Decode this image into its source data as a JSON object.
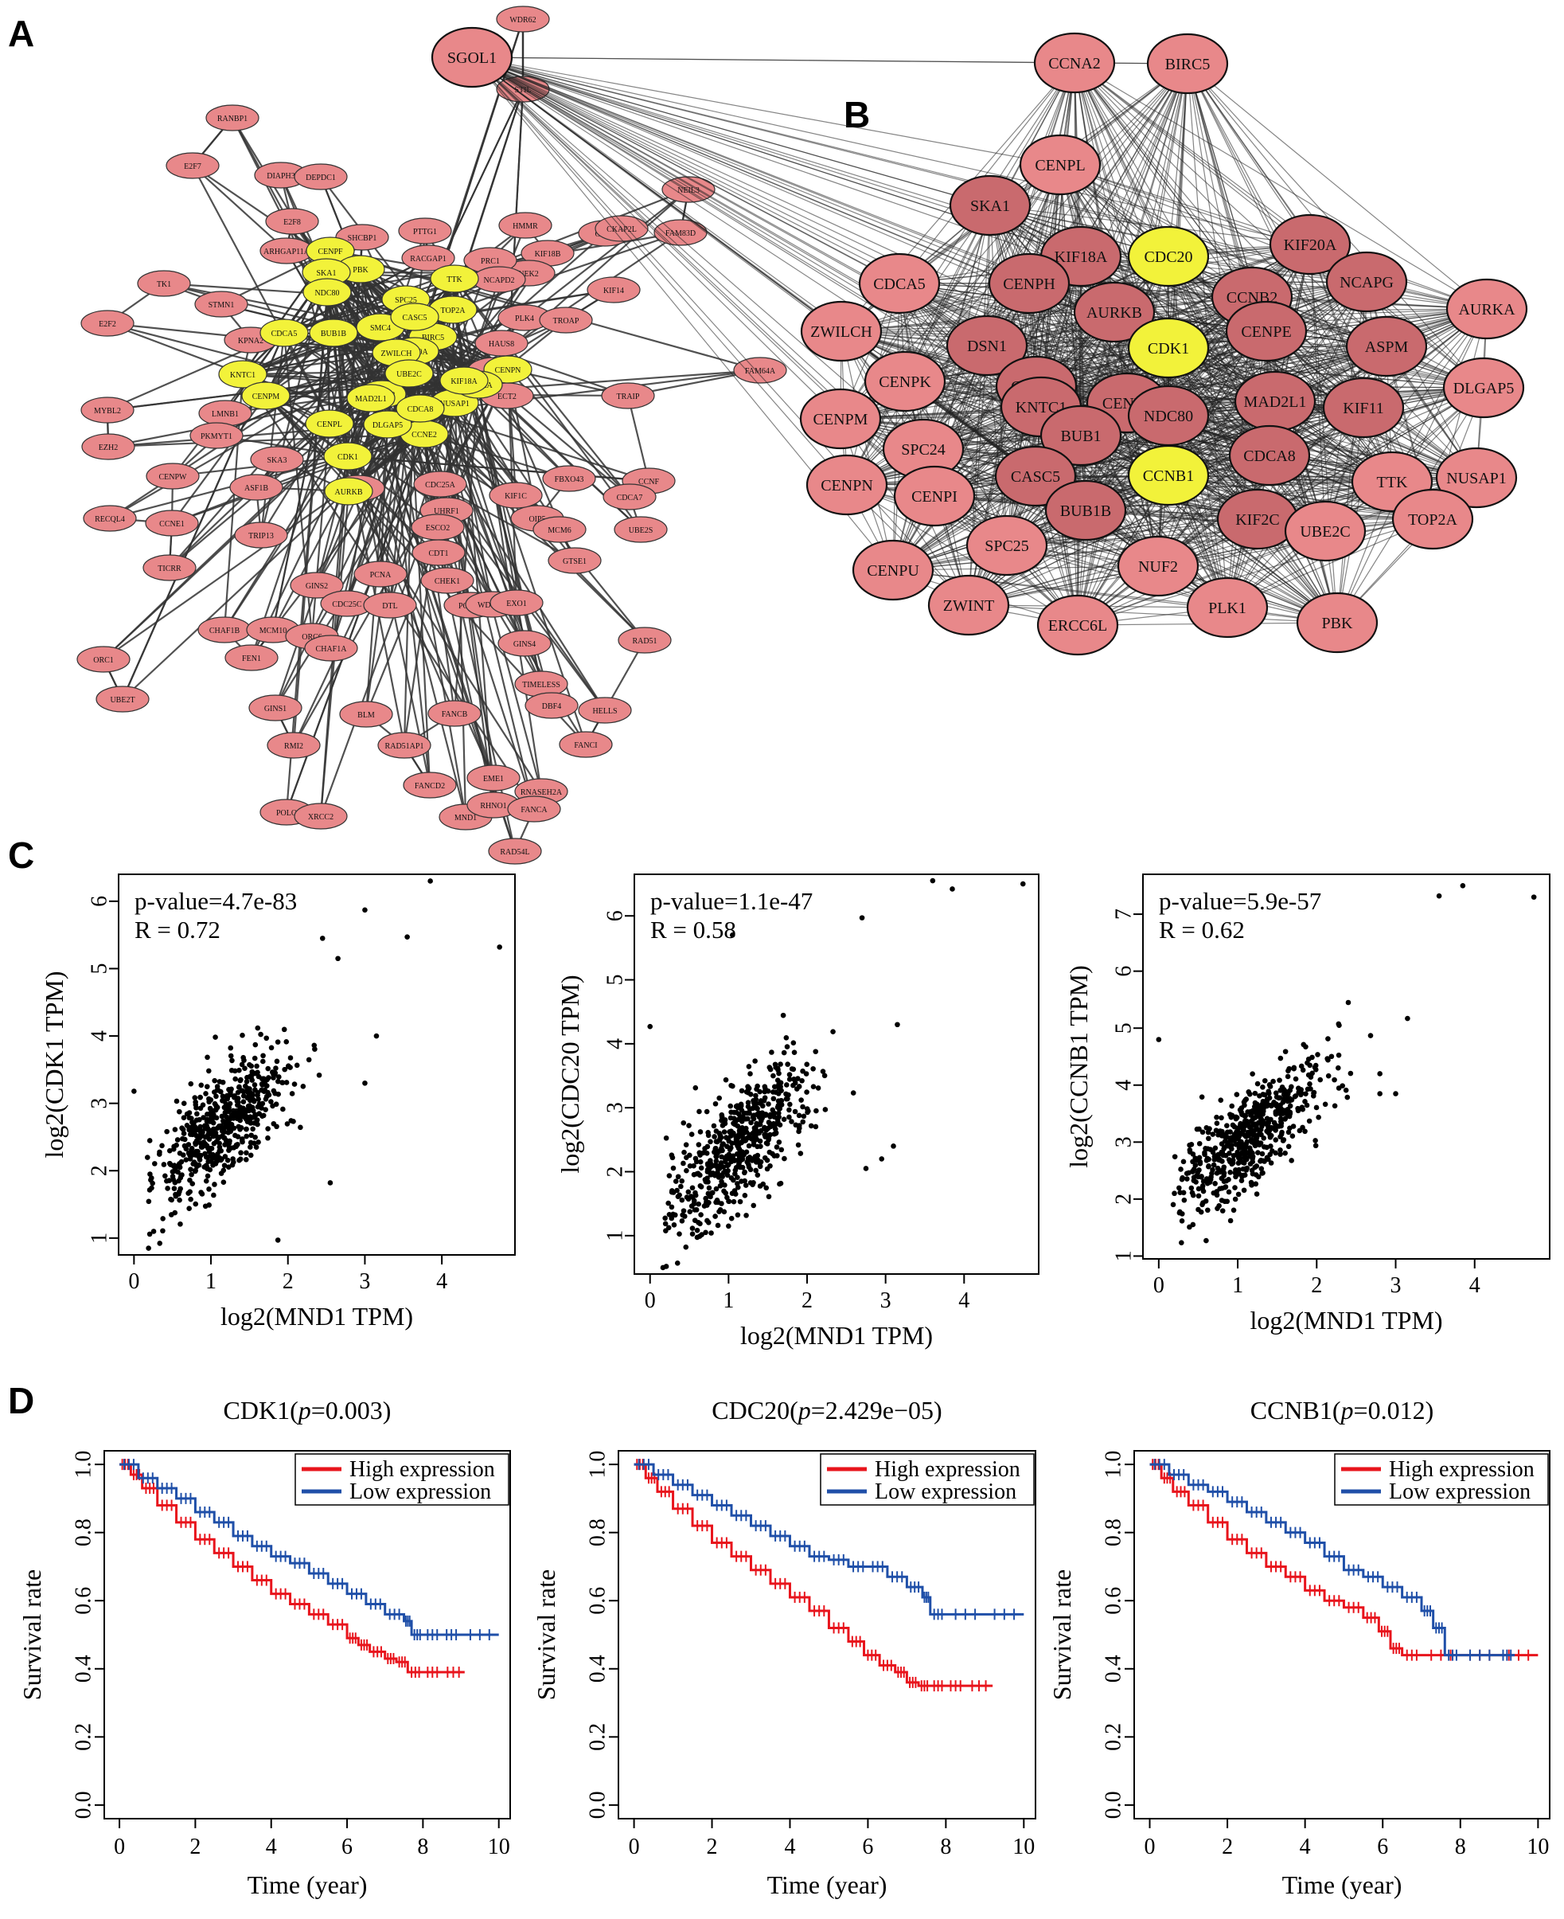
{
  "panels": {
    "A": {
      "letter": "A"
    },
    "B": {
      "letter": "B"
    },
    "C": {
      "letter": "C"
    },
    "D": {
      "letter": "D"
    }
  },
  "colors": {
    "node_pink": "#e8888a",
    "node_yellow": "#f2f23a",
    "node_darkpink": "#c96a6e",
    "edge": "#333333",
    "high_expression": "#e8141c",
    "low_expression": "#1f4fa8"
  },
  "network_b": {
    "nodes": [
      "SGOL1",
      "CCNA2",
      "CENPL",
      "BIRC5",
      "SKA1",
      "KIF18A",
      "CDC20",
      "KIF20A",
      "NCAPG",
      "CDCA5",
      "CENPH",
      "CCNB2",
      "AURKA",
      "AURKB",
      "ZWILCH",
      "DSN1",
      "CDK1",
      "CENPE",
      "ASPM",
      "CENPA",
      "CENPK",
      "DLGAP5",
      "MAD2L1",
      "KIF11",
      "KNTC1",
      "CENPF",
      "CENPM",
      "NDC80",
      "BUB1",
      "SPC24",
      "NUSAP1",
      "CDCA8",
      "CCNB1",
      "CASC5",
      "CENPN",
      "TTK",
      "CENPI",
      "KIF2C",
      "BUB1B",
      "SPC25",
      "UBE2C",
      "TOP2A",
      "NUF2",
      "CENPU",
      "ZWINT",
      "PLK1",
      "PBK",
      "ERCC6L"
    ],
    "highlighted": [
      "CDC20",
      "CDK1",
      "CCNB1"
    ]
  },
  "network_a": {
    "nodes": [
      "WDR62",
      "STIL",
      "RANBP1",
      "E2F7",
      "DIAPH3",
      "DEPDC1",
      "NEIL3",
      "HMMR",
      "PTTG1",
      "GSG2",
      "FAM83D",
      "CKAP2L",
      "E2F8",
      "ARHGAP11A",
      "SHCBP1",
      "KIF18B",
      "NEK2",
      "PRC1",
      "RACGAP1",
      "NCAPD2",
      "TK1",
      "STMN1",
      "KIF14",
      "PLK4",
      "TROAP",
      "E2F2",
      "KPNA2",
      "HAUS8",
      "FAM64A",
      "MYBL2",
      "TPX2",
      "ECT2",
      "TRAIP",
      "EZH2",
      "LMNB1",
      "PKMYT1",
      "SKA3",
      "CENPW",
      "FBXO43",
      "CCNF",
      "ASF1B",
      "E2F1",
      "CDC25A",
      "UHRF1",
      "OIP5",
      "KIF1C",
      "CDCA7",
      "UBE2S",
      "ESCO2",
      "CCNE1",
      "RECQL4",
      "MCM6",
      "GTSE1",
      "TRIP13",
      "CDT1",
      "CHEK1",
      "TICRR",
      "PCNA",
      "GINS2",
      "CDC25C",
      "DTL",
      "POLE2",
      "WDHD1",
      "EXO1",
      "GINS4",
      "CHAF1B",
      "ORC1",
      "MCM10",
      "FEN1",
      "ORC6",
      "CHAF1A",
      "UBE2T",
      "RAD51",
      "TIMELESS",
      "DBF4",
      "GINS1",
      "BLM",
      "FANCB",
      "HELLS",
      "RMI2",
      "RAD51AP1",
      "FANCI",
      "FANCD2",
      "EME1",
      "RNASEH2A",
      "POLQ",
      "XRCC2",
      "MND1",
      "RHNO1",
      "FANCA",
      "RAD54L"
    ],
    "yellow_nodes": [
      "CENPF",
      "PBK",
      "SKA1",
      "SPC25",
      "TOP2A",
      "NDC80",
      "SMC4",
      "BIRC5",
      "KIF20A",
      "CASC5",
      "TTK",
      "CDCA5",
      "BUB1B",
      "ZWILCH",
      "KNTC1",
      "CENPM",
      "CCNA2",
      "CENPL",
      "UBE2C",
      "CENPN",
      "CCNE2",
      "NUSAP1",
      "AURKA",
      "CDK1",
      "AURKB",
      "DLGAP5",
      "MAD2L1",
      "KIF18A",
      "CDCA8"
    ]
  },
  "chart_data": [
    {
      "type": "scatter",
      "panel": "C1",
      "annotations": [
        "p-value=4.7e-83",
        "R = 0.72"
      ],
      "xlabel": "log2(MND1 TPM)",
      "ylabel": "log2(CDK1 TPM)",
      "xlim": [
        -0.2,
        4.95
      ],
      "ylim": [
        0.75,
        6.4
      ],
      "xticks": [
        0,
        1,
        2,
        3,
        4
      ],
      "yticks": [
        1,
        2,
        3,
        4,
        5,
        6
      ],
      "n_points": 570,
      "trend": {
        "x_mean": 1.15,
        "x_sd": 0.45,
        "slope": 0.95,
        "intercept": 1.55,
        "noise": 0.5
      },
      "outliers": [
        [
          0.0,
          3.18
        ],
        [
          1.87,
          0.97
        ],
        [
          2.55,
          1.82
        ],
        [
          2.45,
          5.45
        ],
        [
          2.65,
          5.15
        ],
        [
          3.15,
          4.0
        ],
        [
          3.0,
          3.3
        ],
        [
          3.0,
          5.87
        ],
        [
          3.55,
          5.47
        ],
        [
          3.85,
          6.3
        ],
        [
          4.75,
          5.32
        ]
      ]
    },
    {
      "type": "scatter",
      "panel": "C2",
      "annotations": [
        "p-value=1.1e-47",
        "R = 0.58"
      ],
      "xlabel": "log2(MND1 TPM)",
      "ylabel": "log2(CDC20 TPM)",
      "xlim": [
        -0.2,
        4.95
      ],
      "ylim": [
        0.4,
        6.65
      ],
      "xticks": [
        0,
        1,
        2,
        3,
        4
      ],
      "yticks": [
        1,
        2,
        3,
        4,
        5,
        6
      ],
      "n_points": 570,
      "trend": {
        "x_mean": 1.15,
        "x_sd": 0.45,
        "slope": 1.05,
        "intercept": 1.2,
        "noise": 0.6
      },
      "outliers": [
        [
          0.0,
          4.27
        ],
        [
          0.35,
          0.57
        ],
        [
          1.05,
          5.7
        ],
        [
          2.7,
          5.97
        ],
        [
          2.75,
          2.05
        ],
        [
          2.95,
          2.2
        ],
        [
          3.1,
          2.4
        ],
        [
          3.15,
          4.3
        ],
        [
          3.6,
          6.55
        ],
        [
          3.85,
          6.42
        ],
        [
          4.75,
          6.5
        ]
      ]
    },
    {
      "type": "scatter",
      "panel": "C3",
      "annotations": [
        "p-value=5.9e-57",
        "R = 0.62"
      ],
      "xlabel": "log2(MND1 TPM)",
      "ylabel": "log2(CCNB1 TPM)",
      "xlim": [
        -0.2,
        4.95
      ],
      "ylim": [
        0.95,
        7.7
      ],
      "xticks": [
        0,
        1,
        2,
        3,
        4
      ],
      "yticks": [
        1,
        2,
        3,
        4,
        5,
        6,
        7
      ],
      "n_points": 570,
      "trend": {
        "x_mean": 1.15,
        "x_sd": 0.45,
        "slope": 1.0,
        "intercept": 1.95,
        "noise": 0.55
      },
      "outliers": [
        [
          0.0,
          4.8
        ],
        [
          0.6,
          1.27
        ],
        [
          2.8,
          3.85
        ],
        [
          2.8,
          4.2
        ],
        [
          3.15,
          5.17
        ],
        [
          3.0,
          3.85
        ],
        [
          2.4,
          5.45
        ],
        [
          3.55,
          7.32
        ],
        [
          3.85,
          7.5
        ],
        [
          4.75,
          7.3
        ]
      ]
    },
    {
      "type": "line",
      "panel": "D1",
      "title_gene": "CDK1",
      "title_p_label": "p",
      "title_p_value": "=0.003",
      "xlabel": "Time (year)",
      "ylabel": "Survival rate",
      "xlim": [
        -0.4,
        10.3
      ],
      "ylim": [
        -0.04,
        1.04
      ],
      "xticks": [
        0,
        2,
        4,
        6,
        8,
        10
      ],
      "yticks": [
        0.0,
        0.2,
        0.4,
        0.6,
        0.8,
        1.0
      ],
      "legend": "top-right",
      "series": [
        {
          "name": "High expression",
          "color": "#e8141c",
          "x": [
            0,
            0.3,
            0.6,
            1,
            1.5,
            2,
            2.5,
            3,
            3.5,
            4,
            4.5,
            5,
            5.5,
            6,
            6.3,
            6.6,
            7,
            7.3,
            7.6,
            8,
            8.5,
            9.1
          ],
          "y": [
            1.0,
            0.97,
            0.93,
            0.88,
            0.83,
            0.78,
            0.74,
            0.7,
            0.66,
            0.62,
            0.59,
            0.56,
            0.53,
            0.49,
            0.47,
            0.45,
            0.43,
            0.42,
            0.39,
            0.39,
            0.39,
            0.39
          ]
        },
        {
          "name": "Low expression",
          "color": "#1f4fa8",
          "x": [
            0,
            0.5,
            1,
            1.5,
            2,
            2.5,
            3,
            3.5,
            4,
            4.5,
            5,
            5.5,
            6,
            6.5,
            7,
            7.5,
            7.7,
            8,
            8.5,
            9,
            10
          ],
          "y": [
            1.0,
            0.96,
            0.93,
            0.9,
            0.86,
            0.83,
            0.79,
            0.76,
            0.73,
            0.71,
            0.68,
            0.65,
            0.62,
            0.59,
            0.56,
            0.54,
            0.5,
            0.5,
            0.5,
            0.5,
            0.5
          ]
        }
      ]
    },
    {
      "type": "line",
      "panel": "D2",
      "title_gene": "CDC20",
      "title_p_label": "p",
      "title_p_value": "=2.429e−05",
      "xlabel": "Time (year)",
      "ylabel": "Survival rate",
      "xlim": [
        -0.4,
        10.3
      ],
      "ylim": [
        -0.04,
        1.04
      ],
      "xticks": [
        0,
        2,
        4,
        6,
        8,
        10
      ],
      "yticks": [
        0.0,
        0.2,
        0.4,
        0.6,
        0.8,
        1.0
      ],
      "legend": "top-right",
      "series": [
        {
          "name": "High expression",
          "color": "#e8141c",
          "x": [
            0,
            0.3,
            0.6,
            1,
            1.5,
            2,
            2.5,
            3,
            3.5,
            4,
            4.5,
            5,
            5.5,
            5.9,
            6.3,
            6.7,
            7,
            7.3,
            7.6,
            8,
            8.5,
            9.2
          ],
          "y": [
            1.0,
            0.96,
            0.92,
            0.87,
            0.82,
            0.77,
            0.73,
            0.69,
            0.65,
            0.61,
            0.57,
            0.52,
            0.48,
            0.44,
            0.41,
            0.39,
            0.36,
            0.35,
            0.35,
            0.35,
            0.35,
            0.35
          ]
        },
        {
          "name": "Low expression",
          "color": "#1f4fa8",
          "x": [
            0,
            0.5,
            1,
            1.5,
            2,
            2.5,
            3,
            3.5,
            4,
            4.5,
            5,
            5.5,
            6,
            6.5,
            7,
            7.4,
            7.6,
            8,
            9,
            10
          ],
          "y": [
            1.0,
            0.97,
            0.94,
            0.91,
            0.88,
            0.85,
            0.82,
            0.79,
            0.76,
            0.73,
            0.72,
            0.7,
            0.7,
            0.67,
            0.64,
            0.61,
            0.56,
            0.56,
            0.56,
            0.56
          ]
        }
      ]
    },
    {
      "type": "line",
      "panel": "D3",
      "title_gene": "CCNB1",
      "title_p_label": "p",
      "title_p_value": "=0.012",
      "xlabel": "Time (year)",
      "ylabel": "Survival rate",
      "xlim": [
        -0.4,
        10.3
      ],
      "ylim": [
        -0.04,
        1.04
      ],
      "xticks": [
        0,
        2,
        4,
        6,
        8,
        10
      ],
      "yticks": [
        0.0,
        0.2,
        0.4,
        0.6,
        0.8,
        1.0
      ],
      "legend": "top-right",
      "series": [
        {
          "name": "High expression",
          "color": "#e8141c",
          "x": [
            0,
            0.3,
            0.6,
            1,
            1.5,
            2,
            2.5,
            3,
            3.5,
            4,
            4.5,
            5,
            5.5,
            5.9,
            6.2,
            6.5,
            7,
            8,
            9,
            10
          ],
          "y": [
            1.0,
            0.96,
            0.92,
            0.88,
            0.83,
            0.78,
            0.74,
            0.7,
            0.67,
            0.63,
            0.6,
            0.58,
            0.55,
            0.51,
            0.46,
            0.44,
            0.44,
            0.44,
            0.44,
            0.44
          ]
        },
        {
          "name": "Low expression",
          "color": "#1f4fa8",
          "x": [
            0,
            0.5,
            1,
            1.5,
            2,
            2.5,
            3,
            3.5,
            4,
            4.5,
            5,
            5.5,
            6,
            6.5,
            7,
            7.3,
            7.6,
            8,
            9,
            9.4
          ],
          "y": [
            1.0,
            0.97,
            0.94,
            0.92,
            0.89,
            0.86,
            0.83,
            0.8,
            0.77,
            0.73,
            0.69,
            0.67,
            0.64,
            0.61,
            0.57,
            0.52,
            0.44,
            0.44,
            0.44,
            0.44
          ]
        }
      ]
    }
  ]
}
